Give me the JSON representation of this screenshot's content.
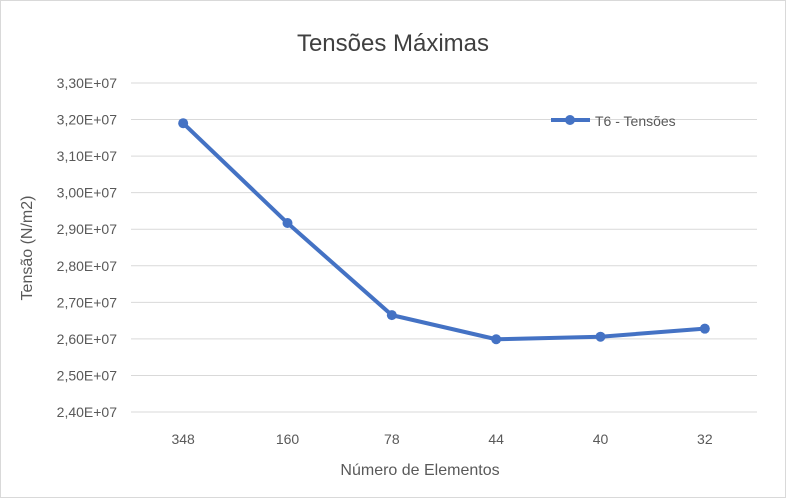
{
  "chart_data": {
    "type": "line",
    "title": "Tensões Máximas",
    "xlabel": "Número de Elementos",
    "ylabel": "Tensão (N/m2)",
    "categories": [
      "348",
      "160",
      "78",
      "44",
      "40",
      "32"
    ],
    "series": [
      {
        "name": "T6 - Tensões",
        "values": [
          31900000,
          29170000,
          26650000,
          25990000,
          26060000,
          26280000
        ]
      }
    ],
    "ylim": [
      24000000,
      33000000
    ],
    "y_ticks": [
      {
        "value": 24000000,
        "label": "2,40E+07"
      },
      {
        "value": 25000000,
        "label": "2,50E+07"
      },
      {
        "value": 26000000,
        "label": "2,60E+07"
      },
      {
        "value": 27000000,
        "label": "2,70E+07"
      },
      {
        "value": 28000000,
        "label": "2,80E+07"
      },
      {
        "value": 29000000,
        "label": "2,90E+07"
      },
      {
        "value": 30000000,
        "label": "3,00E+07"
      },
      {
        "value": 31000000,
        "label": "3,10E+07"
      },
      {
        "value": 32000000,
        "label": "3,20E+07"
      },
      {
        "value": 33000000,
        "label": "3,30E+07"
      }
    ],
    "grid": true,
    "legend": "top-right",
    "colors": {
      "series": "#4472c4",
      "grid": "#d9d9d9",
      "text": "#595959",
      "title": "#404040"
    }
  }
}
